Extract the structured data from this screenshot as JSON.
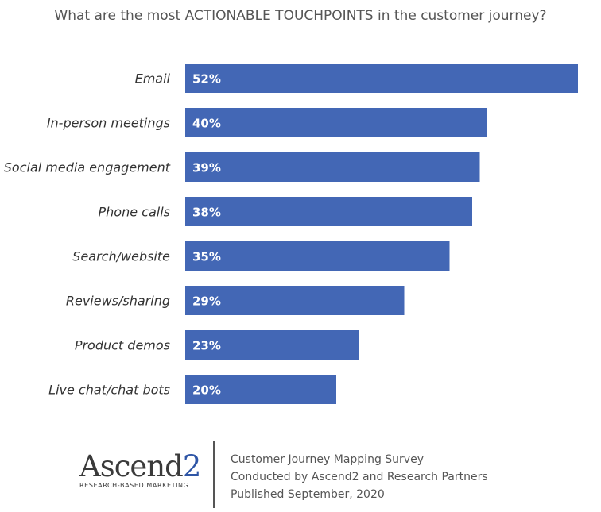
{
  "chart_data": {
    "type": "bar",
    "orientation": "horizontal",
    "title": "What are the most ACTIONABLE TOUCHPOINTS in the customer journey?",
    "categories": [
      "Email",
      "In-person meetings",
      "Social media engagement",
      "Phone calls",
      "Search/website",
      "Reviews/sharing",
      "Product demos",
      "Live chat/chat bots"
    ],
    "values": [
      52,
      40,
      39,
      38,
      35,
      29,
      23,
      20
    ],
    "value_labels": [
      "52%",
      "40%",
      "39%",
      "38%",
      "35%",
      "29%",
      "23%",
      "20%"
    ],
    "unit": "%",
    "xlim": [
      0,
      52
    ],
    "grid": false,
    "bar_color": "#4367b5"
  },
  "logo": {
    "name_main": "Ascend",
    "name_digit": "2",
    "tagline": "RESEARCH-BASED MARKETING"
  },
  "credits": {
    "line1": "Customer Journey Mapping Survey",
    "line2": "Conducted by Ascend2 and Research Partners",
    "line3": "Published September, 2020"
  }
}
